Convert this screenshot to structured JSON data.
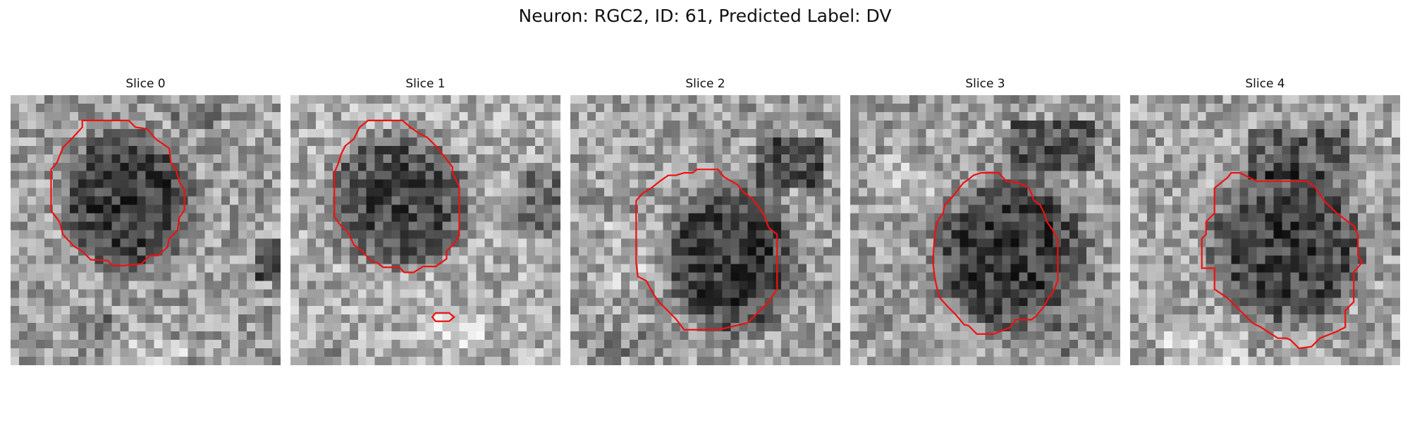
{
  "figure": {
    "title": "Neuron: RGC2, ID: 61, Predicted Label: DV",
    "outline_color": "#ee1111"
  },
  "panels": [
    {
      "title": "Slice 0"
    },
    {
      "title": "Slice 1"
    },
    {
      "title": "Slice 2"
    },
    {
      "title": "Slice 3"
    },
    {
      "title": "Slice 4"
    }
  ]
}
